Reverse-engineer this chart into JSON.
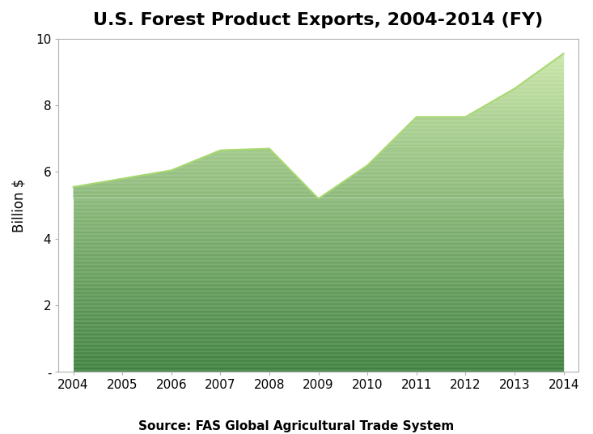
{
  "title": "U.S. Forest Product Exports, 2004-2014 (FY)",
  "xlabel": "",
  "ylabel": "Billion $",
  "source": "Source: FAS Global Agricultural Trade System",
  "years": [
    2004,
    2005,
    2006,
    2007,
    2008,
    2009,
    2010,
    2011,
    2012,
    2013,
    2014
  ],
  "values": [
    5.55,
    5.8,
    6.05,
    6.65,
    6.7,
    5.2,
    6.2,
    7.65,
    7.65,
    8.5,
    9.55
  ],
  "ylim": [
    0,
    10
  ],
  "yticks": [
    0,
    2,
    4,
    6,
    8,
    10
  ],
  "ytick_labels": [
    "-",
    "2",
    "4",
    "6",
    "8",
    "10"
  ],
  "grad_color_bottom": "#1e6b1e",
  "grad_color_mid": "#4aaa4a",
  "grad_color_top": "#c8e8a0",
  "line_color": "#a8d870",
  "background_color": "#ffffff",
  "title_fontsize": 16,
  "ylabel_fontsize": 12,
  "tick_fontsize": 11,
  "source_fontsize": 11
}
